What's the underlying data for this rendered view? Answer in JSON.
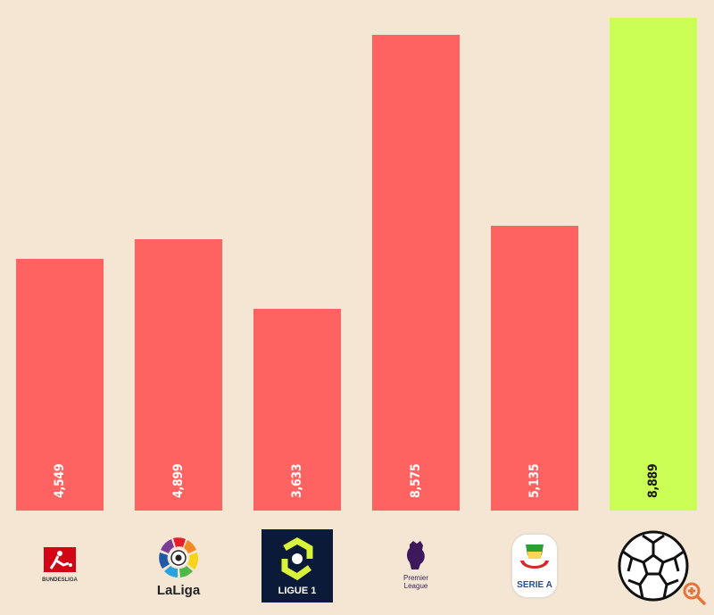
{
  "chart_data": {
    "type": "bar",
    "title": "",
    "xlabel": "",
    "ylabel": "",
    "categories": [
      "Bundesliga",
      "LaLiga",
      "Ligue 1",
      "Premier League",
      "Serie A",
      "Football"
    ],
    "values": [
      4549,
      4899,
      3633,
      8575,
      5135,
      8889
    ],
    "value_labels": [
      "4,549",
      "4,899",
      "3,633",
      "8,575",
      "5,135",
      "8,889"
    ],
    "colors": [
      "#ff6361",
      "#ff6361",
      "#ff6361",
      "#ff6361",
      "#ff6361",
      "#ccff55"
    ],
    "ylim": [
      0,
      8889
    ],
    "grid": false,
    "legend": "none"
  },
  "logos": {
    "bundesliga": "BUNDESLIGA",
    "laliga": "LaLiga",
    "ligue1": "LIGUE 1",
    "premier_league_line1": "Premier",
    "premier_league_line2": "League",
    "serie_a": "SERIE A"
  },
  "colors": {
    "background": "#f5e6d4",
    "bar": "#ff6361",
    "highlight": "#ccff55",
    "zoom_icon": "#e8733a"
  }
}
